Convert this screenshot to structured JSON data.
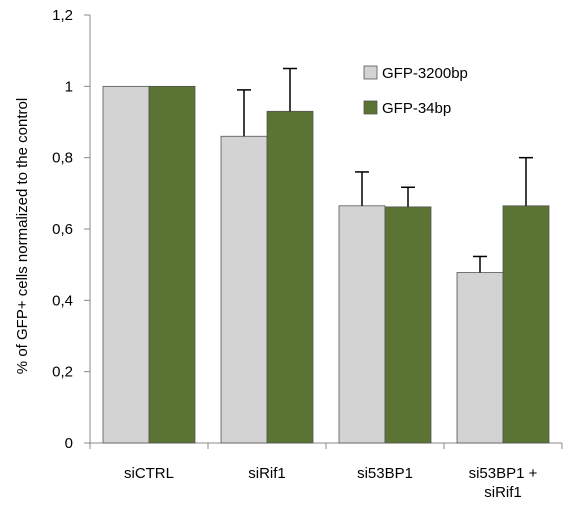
{
  "chart_data": {
    "type": "bar",
    "title": "",
    "xlabel": "",
    "ylabel": "% of GFP+ cells normalized to the control",
    "ylim": [
      0,
      1.2
    ],
    "yticks": [
      "0",
      "0,2",
      "0,4",
      "0,6",
      "0,8",
      "1",
      "1,2"
    ],
    "categories": [
      [
        "siCTRL"
      ],
      [
        "siRif1"
      ],
      [
        "si53BP1"
      ],
      [
        "si53BP1 +",
        "siRif1"
      ]
    ],
    "series": [
      {
        "name": "GFP-3200bp",
        "color": "#d3d3d3",
        "values": [
          1.0,
          0.86,
          0.665,
          0.478
        ],
        "errors": [
          0.0,
          0.13,
          0.095,
          0.045
        ]
      },
      {
        "name": "GFP-34bp",
        "color": "#5b7333",
        "values": [
          1.0,
          0.93,
          0.662,
          0.665
        ],
        "errors": [
          0.0,
          0.12,
          0.055,
          0.135
        ]
      }
    ],
    "legend_position": "top-right",
    "grid": false
  }
}
